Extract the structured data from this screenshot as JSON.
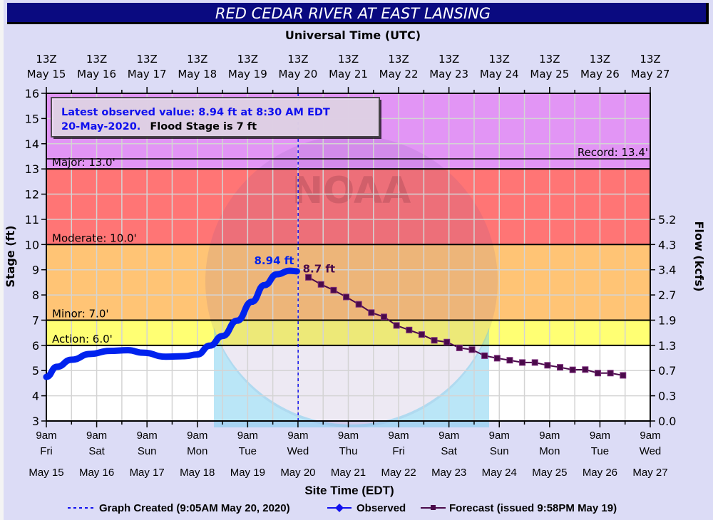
{
  "title": "RED CEDAR RIVER AT EAST LANSING",
  "chart_data": {
    "type": "line",
    "top_axis_title": "Universal Time (UTC)",
    "xlabel": "Site Time (EDT)",
    "ylabel": "Stage (ft)",
    "y2label": "Flow (kcfs)",
    "ylim": [
      3,
      16
    ],
    "xlim": [
      "2020-05-15 09:00",
      "2020-05-27 09:00"
    ],
    "grid": true,
    "legend_position": "bottom",
    "y_ticks": [
      "3",
      "4",
      "5",
      "6",
      "7",
      "8",
      "9",
      "10",
      "11",
      "12",
      "13",
      "14",
      "15",
      "16"
    ],
    "y2_ticks": [
      {
        "stage": 3,
        "label": "0.0"
      },
      {
        "stage": 4,
        "label": "0.3"
      },
      {
        "stage": 5,
        "label": "0.7"
      },
      {
        "stage": 6,
        "label": "1.3"
      },
      {
        "stage": 7,
        "label": "1.9"
      },
      {
        "stage": 8,
        "label": "2.7"
      },
      {
        "stage": 9,
        "label": "3.4"
      },
      {
        "stage": 10,
        "label": "4.3"
      },
      {
        "stage": 11,
        "label": "5.2"
      }
    ],
    "top_ticks": [
      {
        "hour": "13Z",
        "date": "May 15"
      },
      {
        "hour": "13Z",
        "date": "May 16"
      },
      {
        "hour": "13Z",
        "date": "May 17"
      },
      {
        "hour": "13Z",
        "date": "May 18"
      },
      {
        "hour": "13Z",
        "date": "May 19"
      },
      {
        "hour": "13Z",
        "date": "May 20"
      },
      {
        "hour": "13Z",
        "date": "May 21"
      },
      {
        "hour": "13Z",
        "date": "May 22"
      },
      {
        "hour": "13Z",
        "date": "May 23"
      },
      {
        "hour": "13Z",
        "date": "May 24"
      },
      {
        "hour": "13Z",
        "date": "May 25"
      },
      {
        "hour": "13Z",
        "date": "May 26"
      },
      {
        "hour": "13Z",
        "date": "May 27"
      }
    ],
    "bottom_ticks": [
      {
        "time": "9am",
        "day": "Fri",
        "date": "May 15"
      },
      {
        "time": "9am",
        "day": "Sat",
        "date": "May 16"
      },
      {
        "time": "9am",
        "day": "Sun",
        "date": "May 17"
      },
      {
        "time": "9am",
        "day": "Mon",
        "date": "May 18"
      },
      {
        "time": "9am",
        "day": "Tue",
        "date": "May 19"
      },
      {
        "time": "9am",
        "day": "Wed",
        "date": "May 20"
      },
      {
        "time": "9am",
        "day": "Thu",
        "date": "May 21"
      },
      {
        "time": "9am",
        "day": "Fri",
        "date": "May 22"
      },
      {
        "time": "9am",
        "day": "Sat",
        "date": "May 23"
      },
      {
        "time": "9am",
        "day": "Sun",
        "date": "May 24"
      },
      {
        "time": "9am",
        "day": "Mon",
        "date": "May 25"
      },
      {
        "time": "9am",
        "day": "Tue",
        "date": "May 26"
      },
      {
        "time": "9am",
        "day": "Wed",
        "date": "May 27"
      }
    ],
    "flood_categories": [
      {
        "name": "Action",
        "label": "Action: 6.0'",
        "from": 6,
        "to": 7,
        "color": "#ffff73"
      },
      {
        "name": "Minor",
        "label": "Minor: 7.0'",
        "from": 7,
        "to": 10,
        "color": "#ffc475"
      },
      {
        "name": "Moderate",
        "label": "Moderate: 10.0'",
        "from": 10,
        "to": 13,
        "color": "#ff7575"
      },
      {
        "name": "Major",
        "label": "Major: 13.0'",
        "from": 13,
        "to": 16,
        "color": "#e295f5"
      }
    ],
    "record": {
      "label": "Record: 13.4'",
      "value": 13.4
    },
    "annotation": {
      "line1": "Latest observed value: 8.94 ft at 8:30 AM EDT",
      "line2a": "20-May-2020.",
      "line2b": "Flood Stage is 7 ft"
    },
    "graph_created": "2020-05-20 09:05",
    "series": [
      {
        "name": "Observed",
        "color": "#0022ee",
        "end_label": "8.94 ft",
        "points": [
          [
            "2020-05-15 09:00",
            4.75
          ],
          [
            "2020-05-15 14:00",
            5.15
          ],
          [
            "2020-05-15 21:00",
            5.43
          ],
          [
            "2020-05-16 06:00",
            5.66
          ],
          [
            "2020-05-16 15:00",
            5.78
          ],
          [
            "2020-05-17 00:00",
            5.81
          ],
          [
            "2020-05-17 07:00",
            5.71
          ],
          [
            "2020-05-17 18:00",
            5.55
          ],
          [
            "2020-05-18 03:00",
            5.57
          ],
          [
            "2020-05-18 09:00",
            5.64
          ],
          [
            "2020-05-18 15:00",
            5.99
          ],
          [
            "2020-05-18 21:00",
            6.37
          ],
          [
            "2020-05-19 04:00",
            6.98
          ],
          [
            "2020-05-19 11:00",
            7.73
          ],
          [
            "2020-05-19 17:00",
            8.39
          ],
          [
            "2020-05-19 23:00",
            8.82
          ],
          [
            "2020-05-20 05:00",
            8.96
          ],
          [
            "2020-05-20 08:30",
            8.94
          ]
        ]
      },
      {
        "name": "Forecast",
        "color": "#4a0a4a",
        "start_label": "8.7 ft",
        "points": [
          [
            "2020-05-20 14:00",
            8.7
          ],
          [
            "2020-05-20 20:00",
            8.42
          ],
          [
            "2020-05-21 02:00",
            8.19
          ],
          [
            "2020-05-21 08:00",
            7.92
          ],
          [
            "2020-05-21 14:00",
            7.63
          ],
          [
            "2020-05-21 20:00",
            7.3
          ],
          [
            "2020-05-22 02:00",
            7.13
          ],
          [
            "2020-05-22 08:00",
            6.79
          ],
          [
            "2020-05-22 14:00",
            6.61
          ],
          [
            "2020-05-22 20:00",
            6.43
          ],
          [
            "2020-05-23 02:00",
            6.2
          ],
          [
            "2020-05-23 08:00",
            6.13
          ],
          [
            "2020-05-23 14:00",
            5.9
          ],
          [
            "2020-05-23 20:00",
            5.83
          ],
          [
            "2020-05-24 02:00",
            5.59
          ],
          [
            "2020-05-24 08:00",
            5.49
          ],
          [
            "2020-05-24 14:00",
            5.41
          ],
          [
            "2020-05-24 20:00",
            5.32
          ],
          [
            "2020-05-25 02:00",
            5.32
          ],
          [
            "2020-05-25 08:00",
            5.21
          ],
          [
            "2020-05-25 14:00",
            5.13
          ],
          [
            "2020-05-25 20:00",
            5.03
          ],
          [
            "2020-05-26 02:00",
            5.04
          ],
          [
            "2020-05-26 08:00",
            4.9
          ],
          [
            "2020-05-26 14:00",
            4.9
          ],
          [
            "2020-05-26 20:00",
            4.81
          ]
        ]
      }
    ],
    "legend": {
      "graph_created": "Graph Created (9:05AM May 20, 2020)",
      "observed": "Observed",
      "forecast": "Forecast (issued 9:58PM May 19)"
    }
  }
}
